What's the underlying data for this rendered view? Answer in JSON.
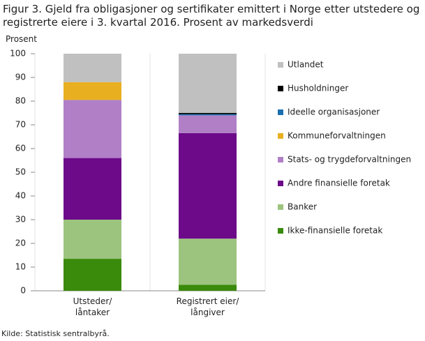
{
  "chart_data": {
    "type": "stacked_bar",
    "title": "Figur 3. Gjeld fra obligasjoner og sertifikater emittert i Norge etter utstedere og registrerte eiere i 3. kvartal 2016. Prosent av markedsverdi",
    "y_label": "Prosent",
    "source": "Kilde: Statistisk sentralbyrå.",
    "categories": [
      "Utsteder/\nlåntaker",
      "Registrert eier/\nlångiver"
    ],
    "series": [
      {
        "name": "Ikke-finansielle foretak",
        "color": "#3a8a0b",
        "values": [
          13.5,
          2.5
        ]
      },
      {
        "name": "Banker",
        "color": "#9dc47e",
        "values": [
          16.5,
          19.5
        ]
      },
      {
        "name": "Andre finansielle foretak",
        "color": "#6c0a8a",
        "values": [
          26,
          44.5
        ]
      },
      {
        "name": "Stats- og trygdeforvaltningen",
        "color": "#b07fc6",
        "values": [
          24.5,
          7.5
        ]
      },
      {
        "name": "Kommuneforvaltningen",
        "color": "#e8b020",
        "values": [
          7.5,
          0
        ]
      },
      {
        "name": "Ideelle organisasjoner",
        "color": "#1a6faf",
        "values": [
          0,
          0.5
        ]
      },
      {
        "name": "Husholdninger",
        "color": "#000000",
        "values": [
          0,
          0.5
        ]
      },
      {
        "name": "Utlandet",
        "color": "#c0c0c0",
        "values": [
          12,
          25
        ]
      }
    ],
    "ylim": [
      0,
      100
    ],
    "yticks": [
      0,
      10,
      20,
      30,
      40,
      50,
      60,
      70,
      80,
      90,
      100
    ]
  }
}
